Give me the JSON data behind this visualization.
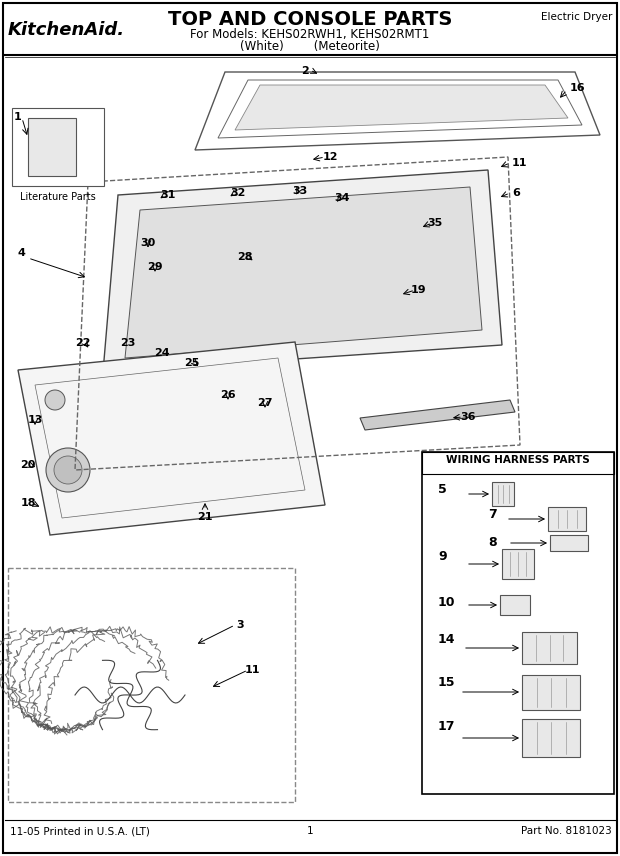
{
  "title": "TOP AND CONSOLE PARTS",
  "subtitle_line1": "For Models: KEHS02RWH1, KEHS02RMT1",
  "subtitle_line2": "(White)        (Meteorite)",
  "brand": "KitchenAid.",
  "top_right_text": "Electric Dryer",
  "footer_left": "11-05 Printed in U.S.A. (LT)",
  "footer_center": "1",
  "footer_right": "Part No. 8181023",
  "wiring_box_title": "WIRING HARNESS PARTS",
  "literature_label": "Literature Parts",
  "bg_color": "#ffffff",
  "text_color": "#000000",
  "line_color": "#333333",
  "box_color": "#dddddd",
  "dashed_box_color": "#555555"
}
